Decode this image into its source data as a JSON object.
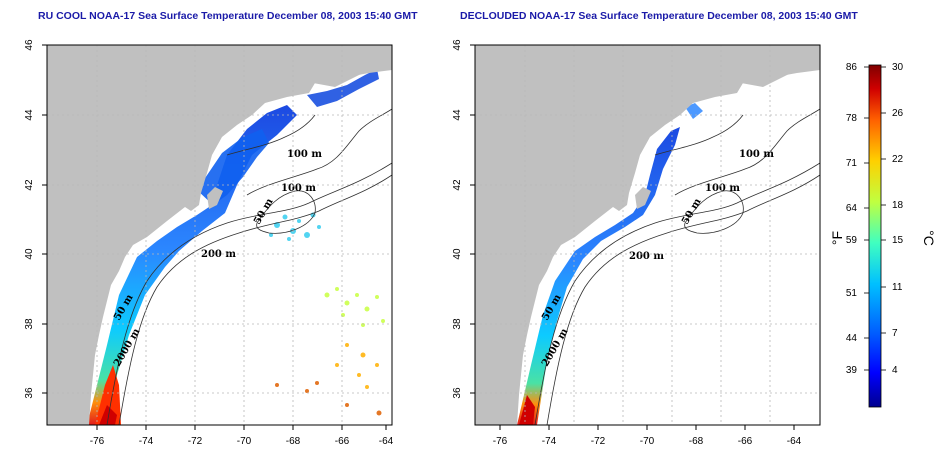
{
  "panels": [
    {
      "id": "left",
      "title": "RU COOL NOAA-17 Sea Surface Temperature December 08, 2003 15:40 GMT",
      "contour_labels": [
        "100 m",
        "100 m",
        "50 m",
        "200 m",
        "50 m",
        "2000 m"
      ],
      "x_ticks": [
        "-76",
        "-74",
        "-72",
        "-70",
        "-68",
        "-66",
        "-64"
      ],
      "y_ticks": [
        "46",
        "44",
        "42",
        "40",
        "38",
        "36"
      ]
    },
    {
      "id": "right",
      "title": "DECLOUDED NOAA-17 Sea Surface Temperature December 08, 2003 15:40 GMT",
      "contour_labels": [
        "100 m",
        "100 m",
        "50 m",
        "200 m",
        "50 m",
        "2000 m"
      ],
      "x_ticks": [
        "-76",
        "-74",
        "-72",
        "-70",
        "-68",
        "-66",
        "-64"
      ],
      "y_ticks": [
        "46",
        "44",
        "42",
        "40",
        "38",
        "36"
      ]
    }
  ],
  "map_extent": {
    "lon": [
      -77.0,
      -63.0
    ],
    "lat": [
      35.0,
      46.0
    ]
  },
  "colorbar": {
    "fahrenheit_unit": "°F",
    "celsius_unit": "°C",
    "fahrenheit_ticks": [
      "86",
      "78",
      "71",
      "64",
      "59",
      "51",
      "44",
      "39"
    ],
    "celsius_ticks": [
      "30",
      "26",
      "22",
      "18",
      "15",
      "11",
      "7",
      "4"
    ],
    "range_celsius": [
      0,
      30
    ],
    "colors": [
      "#00008f",
      "#0000ff",
      "#0060ff",
      "#00c0ff",
      "#40ffc0",
      "#c0ff40",
      "#ffd000",
      "#ff6000",
      "#d00000",
      "#800000"
    ]
  },
  "colors": {
    "land": "#c0c0c0",
    "ocean_no_data": "#ffffff",
    "title": "#1a1aa8",
    "grid": "#b8b8b8"
  }
}
